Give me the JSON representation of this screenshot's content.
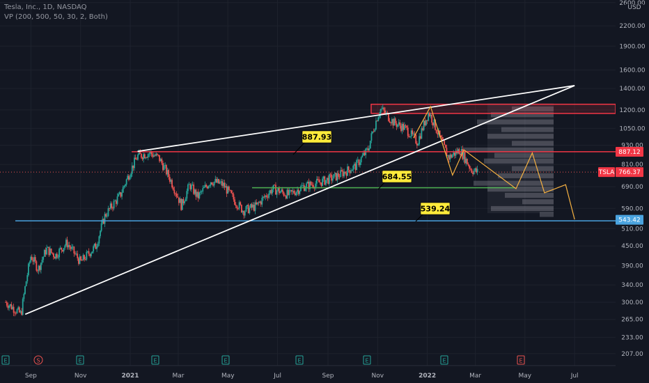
{
  "header": {
    "symbol_line": "Tesla, Inc., 1D, NASDAQ",
    "indicator_line": "VP (200, 500, 50, 30, 2, Both)"
  },
  "currency": "USD",
  "colors": {
    "background": "#131722",
    "up": "#26a69a",
    "down": "#ef5350",
    "resistance": "#f23645",
    "support_blue": "#4aa3df",
    "support_green": "#4caf50",
    "callout": "#ffeb3b",
    "projection": "#f5b041",
    "wedge": "#ffffff"
  },
  "chart_data": {
    "type": "candlestick",
    "ticker": "TSLA",
    "y_scale": "log",
    "y_ticks": [
      "2600.00",
      "2200.00",
      "1900.00",
      "1600.00",
      "1400.00",
      "1200.00",
      "1050.00",
      "930.00",
      "810.00",
      "690.00",
      "590.00",
      "510.00",
      "450.00",
      "390.00",
      "340.00",
      "300.00",
      "265.00",
      "233.00",
      "207.00"
    ],
    "x_ticks": [
      "Sep",
      "Nov",
      "2021",
      "Mar",
      "May",
      "Jul",
      "Sep",
      "Nov",
      "2022",
      "Mar",
      "May",
      "Jul"
    ],
    "ylim": [
      190,
      2650
    ],
    "close_path": [
      [
        "2020-08-01",
        300
      ],
      [
        "2020-08-20",
        275
      ],
      [
        "2020-09-01",
        420
      ],
      [
        "2020-09-10",
        380
      ],
      [
        "2020-09-20",
        440
      ],
      [
        "2020-10-01",
        420
      ],
      [
        "2020-10-15",
        460
      ],
      [
        "2020-11-01",
        400
      ],
      [
        "2020-11-20",
        450
      ],
      [
        "2020-12-01",
        560
      ],
      [
        "2020-12-20",
        650
      ],
      [
        "2021-01-10",
        860
      ],
      [
        "2021-01-25",
        880
      ],
      [
        "2021-02-05",
        850
      ],
      [
        "2021-02-20",
        720
      ],
      [
        "2021-03-05",
        600
      ],
      [
        "2021-03-15",
        700
      ],
      [
        "2021-03-25",
        640
      ],
      [
        "2021-04-10",
        720
      ],
      [
        "2021-04-25",
        700
      ],
      [
        "2021-05-10",
        620
      ],
      [
        "2021-05-20",
        580
      ],
      [
        "2021-06-05",
        600
      ],
      [
        "2021-06-25",
        680
      ],
      [
        "2021-07-15",
        650
      ],
      [
        "2021-08-01",
        690
      ],
      [
        "2021-08-20",
        710
      ],
      [
        "2021-09-10",
        740
      ],
      [
        "2021-10-05",
        800
      ],
      [
        "2021-10-20",
        900
      ],
      [
        "2021-11-01",
        1150
      ],
      [
        "2021-11-05",
        1210
      ],
      [
        "2021-11-20",
        1100
      ],
      [
        "2021-12-05",
        1050
      ],
      [
        "2021-12-20",
        950
      ],
      [
        "2022-01-03",
        1180
      ],
      [
        "2022-01-15",
        1000
      ],
      [
        "2022-01-27",
        850
      ],
      [
        "2022-02-10",
        900
      ],
      [
        "2022-02-24",
        780
      ],
      [
        "2022-03-04",
        766
      ]
    ],
    "horizontal_levels": [
      {
        "label": "887.93",
        "value": 887.93,
        "color": "#f23645"
      },
      {
        "label": "684.55",
        "value": 684.55,
        "color": "#4caf50"
      },
      {
        "label": "539.24",
        "value": 539.24,
        "color": "#4aa3df"
      }
    ],
    "price_tags": [
      {
        "label": "887.12",
        "value": 887.12,
        "color": "#f23645"
      },
      {
        "label": "766.37",
        "value": 766.37,
        "color": "#f23645",
        "ticker": "TSLA"
      },
      {
        "label": "543.42",
        "value": 543.42,
        "color": "#4aa3df"
      }
    ],
    "resistance_zone": [
      1170,
      1250
    ],
    "wedge_lines": [
      {
        "from": [
          "2020-08-25",
          275
        ],
        "to": [
          "2022-07-01",
          1430
        ]
      },
      {
        "from": [
          "2021-01-10",
          890
        ],
        "to": [
          "2022-07-01",
          1430
        ]
      }
    ],
    "projection": [
      [
        "2021-12-15",
        980
      ],
      [
        "2022-01-05",
        1230
      ],
      [
        "2022-02-01",
        750
      ],
      [
        "2022-02-15",
        900
      ],
      [
        "2022-04-20",
        680
      ],
      [
        "2022-05-10",
        880
      ],
      [
        "2022-05-25",
        660
      ],
      [
        "2022-06-20",
        700
      ],
      [
        "2022-07-01",
        545
      ]
    ],
    "event_markers": [
      "E",
      "S",
      "E",
      "E",
      "E",
      "E",
      "E",
      "E",
      "E"
    ]
  }
}
